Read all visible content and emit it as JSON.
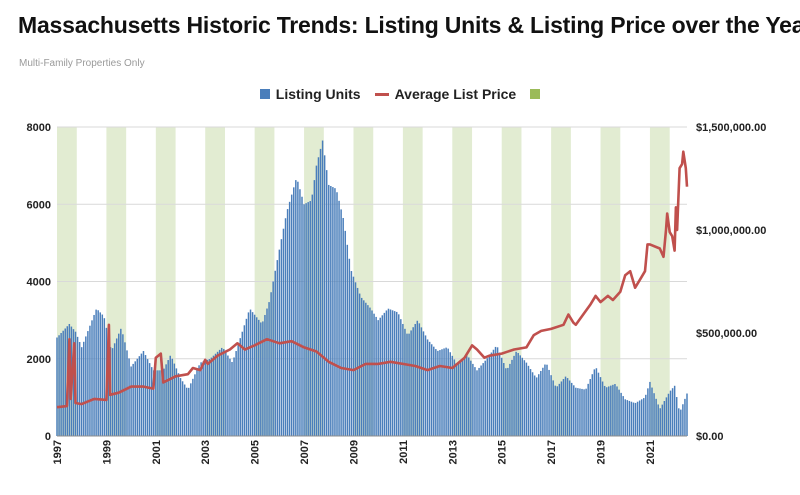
{
  "title": "Massachusetts Historic Trends: Listing Units & Listing Price over the Years",
  "subtitle": "Multi-Family Properties Only",
  "legend": {
    "units": "Listing Units",
    "price": "Average List Price"
  },
  "colors": {
    "bars": "#4a7ebb",
    "line": "#c0504d",
    "bands": "#e2ecd2",
    "grid": "#d9d9d9"
  },
  "chart_data": {
    "type": "bar+line",
    "x_tick_labels": [
      "1997",
      "1999",
      "2001",
      "2003",
      "2005",
      "2007",
      "2009",
      "2011",
      "2013",
      "2015",
      "2017",
      "2019",
      "2021"
    ],
    "y_left_ticks": [
      "0",
      "2000",
      "4000",
      "6000",
      "8000"
    ],
    "y_right_ticks": [
      "$0.00",
      "$500,000.00",
      "$1,000,000.00",
      "$1,500,000.00"
    ],
    "ylim_left": [
      0,
      8000
    ],
    "ylim_right": [
      0,
      1500000
    ],
    "x_range": [
      1997,
      2022.5
    ],
    "shaded_bands": [
      [
        1997.0,
        1997.8
      ],
      [
        1999.0,
        1999.8
      ],
      [
        2001.0,
        2001.8
      ],
      [
        2003.0,
        2003.8
      ],
      [
        2005.0,
        2005.8
      ],
      [
        2007.0,
        2007.8
      ],
      [
        2009.0,
        2009.8
      ],
      [
        2011.0,
        2011.8
      ],
      [
        2013.0,
        2013.8
      ],
      [
        2015.0,
        2015.8
      ],
      [
        2017.0,
        2017.8
      ],
      [
        2019.0,
        2019.8
      ],
      [
        2021.0,
        2021.8
      ]
    ],
    "series": [
      {
        "name": "Listing Units",
        "kind": "bar",
        "points": [
          [
            1997.0,
            2550
          ],
          [
            1997.5,
            2900
          ],
          [
            1997.75,
            2700
          ],
          [
            1998.0,
            2300
          ],
          [
            1998.6,
            3300
          ],
          [
            1998.9,
            3100
          ],
          [
            1999.2,
            2200
          ],
          [
            1999.6,
            2800
          ],
          [
            2000.0,
            1800
          ],
          [
            2000.5,
            2200
          ],
          [
            2000.9,
            1700
          ],
          [
            2001.3,
            1700
          ],
          [
            2001.6,
            2100
          ],
          [
            2002.0,
            1500
          ],
          [
            2002.3,
            1200
          ],
          [
            2002.8,
            1900
          ],
          [
            2003.2,
            2000
          ],
          [
            2003.7,
            2300
          ],
          [
            2004.1,
            1900
          ],
          [
            2004.5,
            2700
          ],
          [
            2004.8,
            3300
          ],
          [
            2005.3,
            2900
          ],
          [
            2005.6,
            3500
          ],
          [
            2005.9,
            4500
          ],
          [
            2006.3,
            5800
          ],
          [
            2006.7,
            6700
          ],
          [
            2007.0,
            6000
          ],
          [
            2007.3,
            6100
          ],
          [
            2007.5,
            7000
          ],
          [
            2007.75,
            7650
          ],
          [
            2008.0,
            6500
          ],
          [
            2008.3,
            6400
          ],
          [
            2008.6,
            5600
          ],
          [
            2008.9,
            4300
          ],
          [
            2009.3,
            3600
          ],
          [
            2009.7,
            3300
          ],
          [
            2010.0,
            3000
          ],
          [
            2010.4,
            3300
          ],
          [
            2010.8,
            3200
          ],
          [
            2011.2,
            2600
          ],
          [
            2011.6,
            3000
          ],
          [
            2012.0,
            2500
          ],
          [
            2012.4,
            2200
          ],
          [
            2012.8,
            2300
          ],
          [
            2013.2,
            1850
          ],
          [
            2013.6,
            2100
          ],
          [
            2014.0,
            1700
          ],
          [
            2014.4,
            2000
          ],
          [
            2014.8,
            2350
          ],
          [
            2015.2,
            1700
          ],
          [
            2015.6,
            2200
          ],
          [
            2016.0,
            1900
          ],
          [
            2016.4,
            1500
          ],
          [
            2016.8,
            1900
          ],
          [
            2017.2,
            1250
          ],
          [
            2017.6,
            1550
          ],
          [
            2018.0,
            1250
          ],
          [
            2018.4,
            1200
          ],
          [
            2018.8,
            1800
          ],
          [
            2019.2,
            1250
          ],
          [
            2019.6,
            1350
          ],
          [
            2020.0,
            950
          ],
          [
            2020.4,
            850
          ],
          [
            2020.8,
            1000
          ],
          [
            2021.0,
            1400
          ],
          [
            2021.4,
            700
          ],
          [
            2021.8,
            1150
          ],
          [
            2022.0,
            1300
          ],
          [
            2022.2,
            600
          ],
          [
            2022.5,
            1100
          ]
        ]
      },
      {
        "name": "Average List Price",
        "kind": "line",
        "points": [
          [
            1997.0,
            140000
          ],
          [
            1997.4,
            145000
          ],
          [
            1997.5,
            470000
          ],
          [
            1997.55,
            180000
          ],
          [
            1997.7,
            450000
          ],
          [
            1997.75,
            160000
          ],
          [
            1998.0,
            155000
          ],
          [
            1998.5,
            180000
          ],
          [
            1999.0,
            175000
          ],
          [
            1999.1,
            540000
          ],
          [
            1999.15,
            200000
          ],
          [
            1999.5,
            210000
          ],
          [
            2000.0,
            240000
          ],
          [
            2000.5,
            240000
          ],
          [
            2000.9,
            230000
          ],
          [
            2001.0,
            380000
          ],
          [
            2001.2,
            400000
          ],
          [
            2001.3,
            260000
          ],
          [
            2001.8,
            290000
          ],
          [
            2002.3,
            300000
          ],
          [
            2002.5,
            330000
          ],
          [
            2002.8,
            320000
          ],
          [
            2003.0,
            370000
          ],
          [
            2003.1,
            350000
          ],
          [
            2003.5,
            390000
          ],
          [
            2004.0,
            420000
          ],
          [
            2004.3,
            450000
          ],
          [
            2004.6,
            420000
          ],
          [
            2005.0,
            440000
          ],
          [
            2005.5,
            470000
          ],
          [
            2006.0,
            450000
          ],
          [
            2006.5,
            460000
          ],
          [
            2007.0,
            430000
          ],
          [
            2007.5,
            410000
          ],
          [
            2008.0,
            360000
          ],
          [
            2008.5,
            330000
          ],
          [
            2009.0,
            320000
          ],
          [
            2009.5,
            350000
          ],
          [
            2010.0,
            350000
          ],
          [
            2010.5,
            360000
          ],
          [
            2011.0,
            350000
          ],
          [
            2011.5,
            340000
          ],
          [
            2012.0,
            320000
          ],
          [
            2012.5,
            340000
          ],
          [
            2013.0,
            330000
          ],
          [
            2013.5,
            380000
          ],
          [
            2013.8,
            440000
          ],
          [
            2014.0,
            420000
          ],
          [
            2014.3,
            380000
          ],
          [
            2014.5,
            390000
          ],
          [
            2015.0,
            400000
          ],
          [
            2015.5,
            420000
          ],
          [
            2016.0,
            430000
          ],
          [
            2016.3,
            490000
          ],
          [
            2016.6,
            510000
          ],
          [
            2017.0,
            520000
          ],
          [
            2017.5,
            540000
          ],
          [
            2017.7,
            590000
          ],
          [
            2017.9,
            550000
          ],
          [
            2018.0,
            540000
          ],
          [
            2018.3,
            590000
          ],
          [
            2018.6,
            640000
          ],
          [
            2018.8,
            680000
          ],
          [
            2019.0,
            650000
          ],
          [
            2019.3,
            680000
          ],
          [
            2019.5,
            660000
          ],
          [
            2019.8,
            700000
          ],
          [
            2020.0,
            780000
          ],
          [
            2020.2,
            800000
          ],
          [
            2020.4,
            720000
          ],
          [
            2020.6,
            760000
          ],
          [
            2020.8,
            800000
          ],
          [
            2020.9,
            930000
          ],
          [
            2021.0,
            930000
          ],
          [
            2021.4,
            910000
          ],
          [
            2021.55,
            870000
          ],
          [
            2021.65,
            1000000
          ],
          [
            2021.7,
            1080000
          ],
          [
            2021.8,
            990000
          ],
          [
            2021.9,
            970000
          ],
          [
            2022.0,
            900000
          ],
          [
            2022.05,
            1110000
          ],
          [
            2022.1,
            1000000
          ],
          [
            2022.2,
            1300000
          ],
          [
            2022.3,
            1320000
          ],
          [
            2022.35,
            1380000
          ],
          [
            2022.45,
            1300000
          ],
          [
            2022.5,
            1210000
          ]
        ]
      }
    ]
  }
}
